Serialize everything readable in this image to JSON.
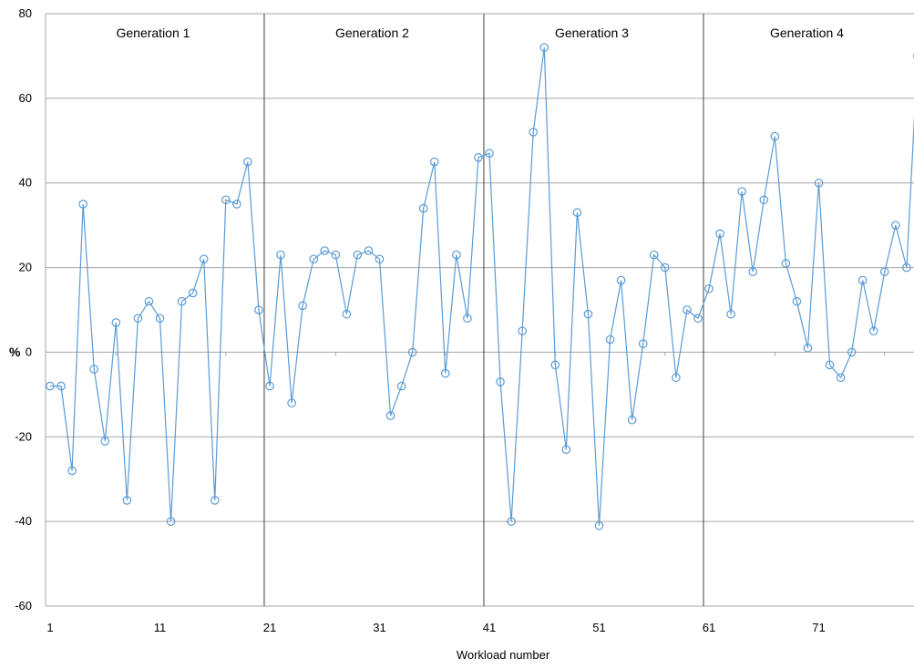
{
  "chart_data": {
    "type": "line",
    "title": "",
    "xlabel": "Workload number",
    "ylabel": "%",
    "xlim": [
      1,
      80
    ],
    "ylim": [
      -60,
      80
    ],
    "yticks": [
      80,
      60,
      40,
      20,
      0,
      -20,
      -40,
      -60
    ],
    "xticks": [
      1,
      11,
      21,
      31,
      41,
      51,
      61,
      71
    ],
    "grid": true,
    "legend": "none",
    "colors": {
      "line": "#5b9bd5",
      "grid": "#a6a6a6",
      "divider": "#404040"
    },
    "generations": [
      {
        "label": "Generation 1",
        "start": 1,
        "end": 20
      },
      {
        "label": "Generation 2",
        "start": 20,
        "end": 40
      },
      {
        "label": "Generation 3",
        "start": 40,
        "end": 60
      },
      {
        "label": "Generation 4",
        "start": 60,
        "end": 80
      }
    ],
    "dividers": [
      20,
      40,
      60
    ],
    "series": [
      {
        "x": [
          1,
          2,
          3,
          4,
          5,
          6,
          7,
          8,
          9,
          10,
          11,
          12,
          13,
          14,
          15,
          16,
          17,
          18,
          19,
          20,
          21,
          22,
          23,
          24,
          25,
          26,
          27,
          28,
          29,
          30,
          31,
          32,
          33,
          34,
          35,
          36,
          37,
          38,
          39,
          40,
          41,
          42,
          43,
          44,
          45,
          46,
          47,
          48,
          49,
          50,
          51,
          52,
          53,
          54,
          55,
          56,
          57,
          58,
          59,
          60,
          61,
          62,
          63,
          64,
          65,
          66,
          67,
          68,
          69,
          70,
          71,
          72,
          73,
          74,
          75,
          76,
          77,
          78,
          79,
          80
        ],
        "values": [
          -8,
          -8,
          -28,
          35,
          -4,
          -21,
          7,
          -35,
          8,
          12,
          8,
          -40,
          12,
          14,
          22,
          -35,
          36,
          35,
          45,
          10,
          -8,
          23,
          -12,
          11,
          22,
          24,
          23,
          9,
          23,
          24,
          22,
          -15,
          -8,
          0,
          34,
          45,
          -5,
          23,
          8,
          46,
          47,
          -7,
          -40,
          5,
          52,
          72,
          -3,
          -23,
          33,
          9,
          -41,
          3,
          17,
          -16,
          2,
          23,
          20,
          -6,
          10,
          8,
          15,
          28,
          9,
          38,
          19,
          36,
          51,
          21,
          12,
          1,
          40,
          -3,
          -6,
          0,
          17,
          5,
          19,
          30,
          20,
          70
        ]
      }
    ]
  }
}
